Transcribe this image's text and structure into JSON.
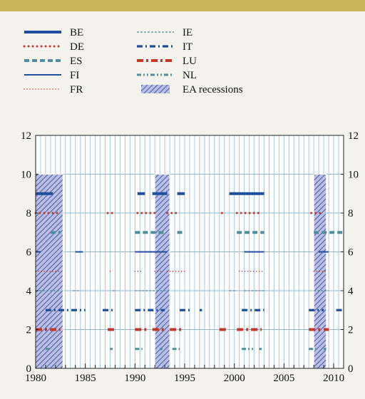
{
  "chart_data": {
    "type": "scatter",
    "title": "",
    "xlabel": "",
    "ylabel": "",
    "xlim": [
      1980,
      2011
    ],
    "ylim": [
      0,
      12
    ],
    "xticks": [
      "1980",
      "1985",
      "1990",
      "1995",
      "2000",
      "2005",
      "2010"
    ],
    "yticks": [
      "0",
      "2",
      "4",
      "6",
      "8",
      "10",
      "12"
    ],
    "grid": true,
    "legend_placement": "top-left",
    "recessions": {
      "name": "EA recessions",
      "color": "#7b88c4",
      "periods": [
        [
          1980.0,
          1982.75
        ],
        [
          1992.0,
          1993.5
        ],
        [
          2008.0,
          2009.25
        ]
      ],
      "height": 10
    },
    "series": [
      {
        "name": "BE",
        "level": 9,
        "color": "#1f4e9c",
        "style": "thick-solid",
        "segments": [
          [
            1980.0,
            1981.75
          ],
          [
            1990.25,
            1991.0
          ],
          [
            1991.75,
            1993.25
          ],
          [
            1994.25,
            1995.0
          ],
          [
            1999.5,
            2003.0
          ]
        ]
      },
      {
        "name": "DE",
        "level": 8,
        "color": "#c0392b",
        "style": "dots",
        "segments": [
          [
            1980.0,
            1982.25
          ],
          [
            1987.25,
            1988.0
          ],
          [
            1990.25,
            1992.25
          ],
          [
            1993.25,
            1994.5
          ],
          [
            1998.75,
            1999.0
          ],
          [
            2000.25,
            2002.75
          ],
          [
            2007.75,
            2009.0
          ]
        ]
      },
      {
        "name": "ES",
        "level": 7,
        "color": "#4f8f9c",
        "style": "thick-dash",
        "segments": [
          [
            1981.5,
            1982.5
          ],
          [
            1990.0,
            1993.0
          ],
          [
            1994.25,
            1994.75
          ],
          [
            2000.25,
            2003.0
          ],
          [
            2008.0,
            2011.0
          ]
        ]
      },
      {
        "name": "FI",
        "level": 6,
        "color": "#1f4e9c",
        "style": "solid",
        "segments": [
          [
            1980.0,
            1980.5
          ],
          [
            1984.0,
            1984.75
          ],
          [
            1990.0,
            1993.25
          ],
          [
            2001.0,
            2003.0
          ],
          [
            2008.5,
            2009.5
          ]
        ]
      },
      {
        "name": "FR",
        "level": 5,
        "color": "#c0392b",
        "style": "fine-dots",
        "segments": [
          [
            1980.0,
            1982.5
          ],
          [
            1987.5,
            1987.75
          ],
          [
            1990.0,
            1990.75
          ],
          [
            1992.0,
            1992.75
          ],
          [
            1993.25,
            1995.0
          ],
          [
            2000.5,
            2003.0
          ],
          [
            2008.0,
            2009.25
          ]
        ]
      },
      {
        "name": "IE",
        "level": 4,
        "color": "#4f8f9c",
        "style": "thin-dash",
        "segments": [
          [
            1980.0,
            1982.5
          ],
          [
            1983.75,
            1984.5
          ],
          [
            1987.75,
            1988.0
          ],
          [
            1990.0,
            1993.5
          ],
          [
            1999.5,
            2000.25
          ],
          [
            2001.0,
            2003.0
          ],
          [
            2008.0,
            2009.5
          ]
        ]
      },
      {
        "name": "IT",
        "level": 3,
        "color": "#1f4e9c",
        "style": "dash-dot",
        "segments": [
          [
            1981.0,
            1985.0
          ],
          [
            1986.75,
            1988.0
          ],
          [
            1990.0,
            1993.0
          ],
          [
            1994.5,
            1995.5
          ],
          [
            1996.5,
            1996.75
          ],
          [
            2000.75,
            2003.0
          ],
          [
            2007.5,
            2009.0
          ],
          [
            2010.25,
            2011.0
          ]
        ]
      },
      {
        "name": "LU",
        "level": 2,
        "color": "#c0392b",
        "style": "thick-dash-dot",
        "segments": [
          [
            1980.0,
            1982.5
          ],
          [
            1987.25,
            1988.0
          ],
          [
            1990.0,
            1991.25
          ],
          [
            1991.75,
            1993.0
          ],
          [
            1993.5,
            1994.75
          ],
          [
            1998.5,
            1999.25
          ],
          [
            2000.25,
            2002.75
          ],
          [
            2007.5,
            2008.75
          ],
          [
            2009.0,
            2009.5
          ]
        ]
      },
      {
        "name": "NL",
        "level": 1,
        "color": "#4f8f9c",
        "style": "dash-dot-dot",
        "segments": [
          [
            1981.0,
            1981.5
          ],
          [
            1987.5,
            1987.75
          ],
          [
            1990.0,
            1990.75
          ],
          [
            1992.5,
            1992.75
          ],
          [
            1993.75,
            1994.5
          ],
          [
            2000.75,
            2002.0
          ],
          [
            2002.5,
            2002.75
          ],
          [
            2007.5,
            2008.25
          ],
          [
            2009.0,
            2009.25
          ]
        ]
      }
    ]
  }
}
